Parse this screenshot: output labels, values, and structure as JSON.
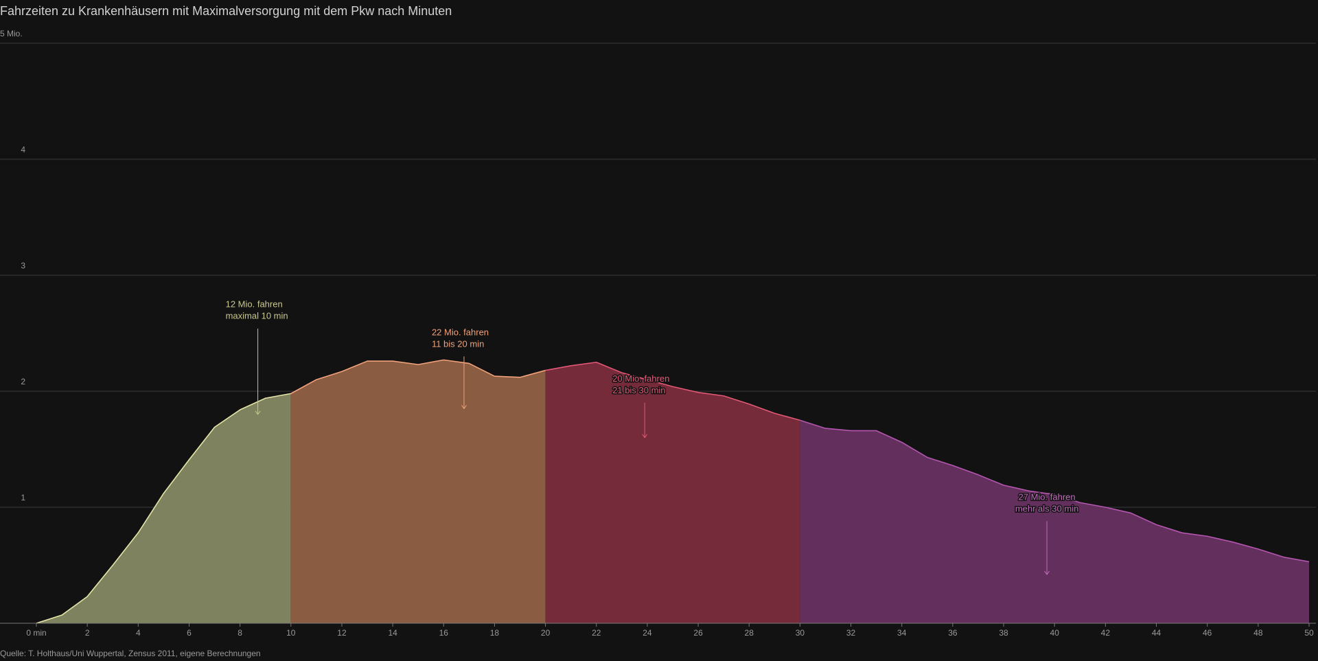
{
  "title": "Fahrzeiten zu Krankenhäusern mit Maximalversorgung mit dem Pkw nach Minuten",
  "source": "Quelle: T. Holthaus/Uni Wuppertal, Zensus 2011, eigene Berechnungen",
  "chart_data": {
    "type": "area",
    "title": "Fahrzeiten zu Krankenhäusern mit Maximalversorgung mit dem Pkw nach Minuten",
    "xlabel": "",
    "ylabel": "",
    "xlim": [
      0,
      50
    ],
    "ylim": [
      0,
      5
    ],
    "grid": true,
    "x_ticks": [
      0,
      2,
      4,
      6,
      8,
      10,
      12,
      14,
      16,
      18,
      20,
      22,
      24,
      26,
      28,
      30,
      32,
      34,
      36,
      38,
      40,
      42,
      44,
      46,
      48,
      50
    ],
    "x_tick_labels": [
      "0 min",
      "2",
      "4",
      "6",
      "8",
      "10",
      "12",
      "14",
      "16",
      "18",
      "20",
      "22",
      "24",
      "26",
      "28",
      "30",
      "32",
      "34",
      "36",
      "38",
      "40",
      "42",
      "44",
      "46",
      "48",
      "50"
    ],
    "y_ticks": [
      1,
      2,
      3,
      4,
      5
    ],
    "y_tick_labels": [
      "1",
      "2",
      "3",
      "4",
      "5 Mio."
    ],
    "x": [
      0,
      1,
      2,
      3,
      4,
      5,
      6,
      7,
      8,
      9,
      10,
      11,
      12,
      13,
      14,
      15,
      16,
      17,
      18,
      19,
      20,
      21,
      22,
      23,
      24,
      25,
      26,
      27,
      28,
      29,
      30,
      31,
      32,
      33,
      34,
      35,
      36,
      37,
      38,
      39,
      40,
      41,
      42,
      43,
      44,
      45,
      46,
      47,
      48,
      49,
      50
    ],
    "values": [
      0.0,
      0.07,
      0.23,
      0.5,
      0.78,
      1.12,
      1.41,
      1.69,
      1.84,
      1.94,
      1.98,
      2.1,
      2.17,
      2.26,
      2.26,
      2.23,
      2.27,
      2.24,
      2.13,
      2.12,
      2.18,
      2.22,
      2.25,
      2.16,
      2.1,
      2.04,
      1.99,
      1.96,
      1.89,
      1.81,
      1.75,
      1.68,
      1.66,
      1.66,
      1.56,
      1.43,
      1.36,
      1.28,
      1.19,
      1.14,
      1.11,
      1.04,
      1.0,
      0.95,
      0.85,
      0.78,
      0.75,
      0.7,
      0.64,
      0.57,
      0.53
    ],
    "segments": [
      {
        "from": 0,
        "to": 10,
        "fill": "#7f825f",
        "line": "#e6e6a8",
        "annotation": [
          "12 Mio. fahren",
          "maximal 10 min"
        ],
        "annot_color": "#c9c78f",
        "annot_x": 8.7,
        "arrow_from_y": 2.54,
        "arrow_to_y": 1.8
      },
      {
        "from": 10,
        "to": 20,
        "fill": "#8a5c41",
        "line": "#f2a27c",
        "annotation": [
          "22 Mio. fahren",
          "11 bis 20 min"
        ],
        "annot_color": "#f0a07a",
        "annot_x": 16.8,
        "arrow_from_y": 2.3,
        "arrow_to_y": 1.85
      },
      {
        "from": 20,
        "to": 30,
        "fill": "#762b3a",
        "line": "#e35876",
        "annotation": [
          "20 Mio. fahren",
          "21 bis 30 min"
        ],
        "annot_color": "#e35876",
        "annot_x": 23.9,
        "arrow_from_y": 1.9,
        "arrow_to_y": 1.6
      },
      {
        "from": 30,
        "to": 50,
        "fill": "#632f5d",
        "line": "#b557b0",
        "annotation": [
          "27 Mio. fahren",
          "mehr als 30 min"
        ],
        "annot_color": "#c06bbb",
        "annot_x": 39.7,
        "arrow_from_y": 0.88,
        "arrow_to_y": 0.42
      }
    ],
    "colors": {
      "background": "#121212",
      "grid": "#3a3a3a",
      "axis": "#7a7a7a",
      "tick_text": "#9a9a9a"
    }
  }
}
